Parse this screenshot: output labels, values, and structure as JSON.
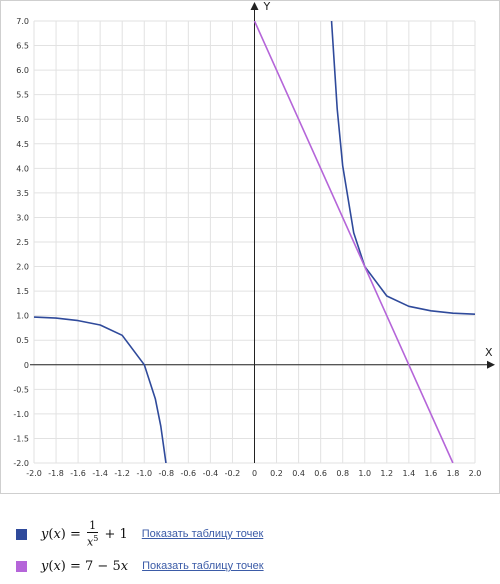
{
  "chart_data": {
    "type": "line",
    "xlabel": "X",
    "ylabel": "Y",
    "xlim": [
      -2.0,
      2.0
    ],
    "ylim": [
      -2.0,
      7.0
    ],
    "grid": true,
    "x_ticks": [
      "-2.0",
      "-1.8",
      "-1.6",
      "-1.4",
      "-1.2",
      "-1.0",
      "-0.8",
      "-0.6",
      "-0.4",
      "-0.2",
      "0",
      "0.2",
      "0.4",
      "0.6",
      "0.8",
      "1.0",
      "1.2",
      "1.4",
      "1.6",
      "1.8",
      "2.0"
    ],
    "y_ticks": [
      "7.0",
      "6.5",
      "6.0",
      "5.5",
      "5.0",
      "4.5",
      "4.0",
      "3.5",
      "3.0",
      "2.5",
      "2.0",
      "1.5",
      "1.0",
      "0.5",
      "0",
      "-0.5",
      "-1.0",
      "-1.5",
      "-2.0"
    ],
    "series": [
      {
        "name": "y(x) = 1/x^5 + 1",
        "color": "#2f4a9b",
        "function": "1/x^5 + 1",
        "x": [
          -2.0,
          -1.8,
          -1.6,
          -1.4,
          -1.2,
          -1.0,
          -0.9,
          -0.85,
          -0.8,
          -0.79,
          0.68,
          0.7,
          0.75,
          0.8,
          0.9,
          1.0,
          1.2,
          1.4,
          1.6,
          1.8,
          2.0
        ],
        "y": [
          0.97,
          0.95,
          0.9,
          0.81,
          0.6,
          0.0,
          -0.69,
          -1.25,
          -2.05,
          -2.25,
          7.88,
          6.95,
          5.21,
          4.05,
          2.69,
          2.0,
          1.4,
          1.19,
          1.1,
          1.05,
          1.03
        ]
      },
      {
        "name": "y(x) = 7 - 5x",
        "color": "#b565d9",
        "function": "7 - 5x",
        "x": [
          0,
          1.8
        ],
        "y": [
          7.0,
          -2.0
        ]
      }
    ]
  },
  "legend": {
    "items": [
      {
        "y_label": "y",
        "x_label": "x",
        "lhs_close": ") = ",
        "numerator": "1",
        "denominator_base": "x",
        "denominator_exp": "5",
        "tail": " + 1",
        "link": "Показать таблицу точек",
        "color": "#2f4a9b"
      },
      {
        "y_label": "y",
        "x_label": "x",
        "lhs_close": ") = ",
        "rhs": "7 − 5",
        "link": "Показать таблицу точек",
        "color": "#b565d9"
      }
    ]
  }
}
